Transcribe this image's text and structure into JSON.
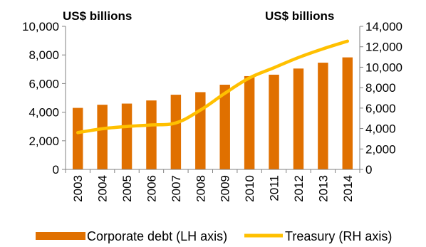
{
  "chart_data": {
    "type": "bar",
    "categories": [
      "2003",
      "2004",
      "2005",
      "2006",
      "2007",
      "2008",
      "2009",
      "2010",
      "2011",
      "2012",
      "2013",
      "2014"
    ],
    "series": [
      {
        "name": "Corporate debt (LH axis)",
        "type": "bar",
        "axis": "left",
        "color": "#E07000",
        "values": [
          4300,
          4520,
          4600,
          4820,
          5220,
          5400,
          5920,
          6520,
          6620,
          7050,
          7460,
          7830
        ]
      },
      {
        "name": "Treasury (RH axis)",
        "type": "line",
        "axis": "right",
        "color": "#FFC000",
        "values": [
          3600,
          3980,
          4200,
          4350,
          4550,
          5800,
          7450,
          8950,
          9950,
          10950,
          11800,
          12550
        ]
      }
    ],
    "left_axis": {
      "unit_label": "US$ billions",
      "ylim": [
        0,
        10000
      ],
      "ticks": [
        "0",
        "2,000",
        "4,000",
        "6,000",
        "8,000",
        "10,000"
      ],
      "tick_values": [
        0,
        2000,
        4000,
        6000,
        8000,
        10000
      ]
    },
    "right_axis": {
      "unit_label": "US$ billions",
      "ylim": [
        0,
        14000
      ],
      "ticks": [
        "0",
        "2,000",
        "4,000",
        "6,000",
        "8,000",
        "10,000",
        "12,000",
        "14,000"
      ],
      "tick_values": [
        0,
        2000,
        4000,
        6000,
        8000,
        10000,
        12000,
        14000
      ]
    },
    "legend_position": "bottom",
    "grid": false
  }
}
